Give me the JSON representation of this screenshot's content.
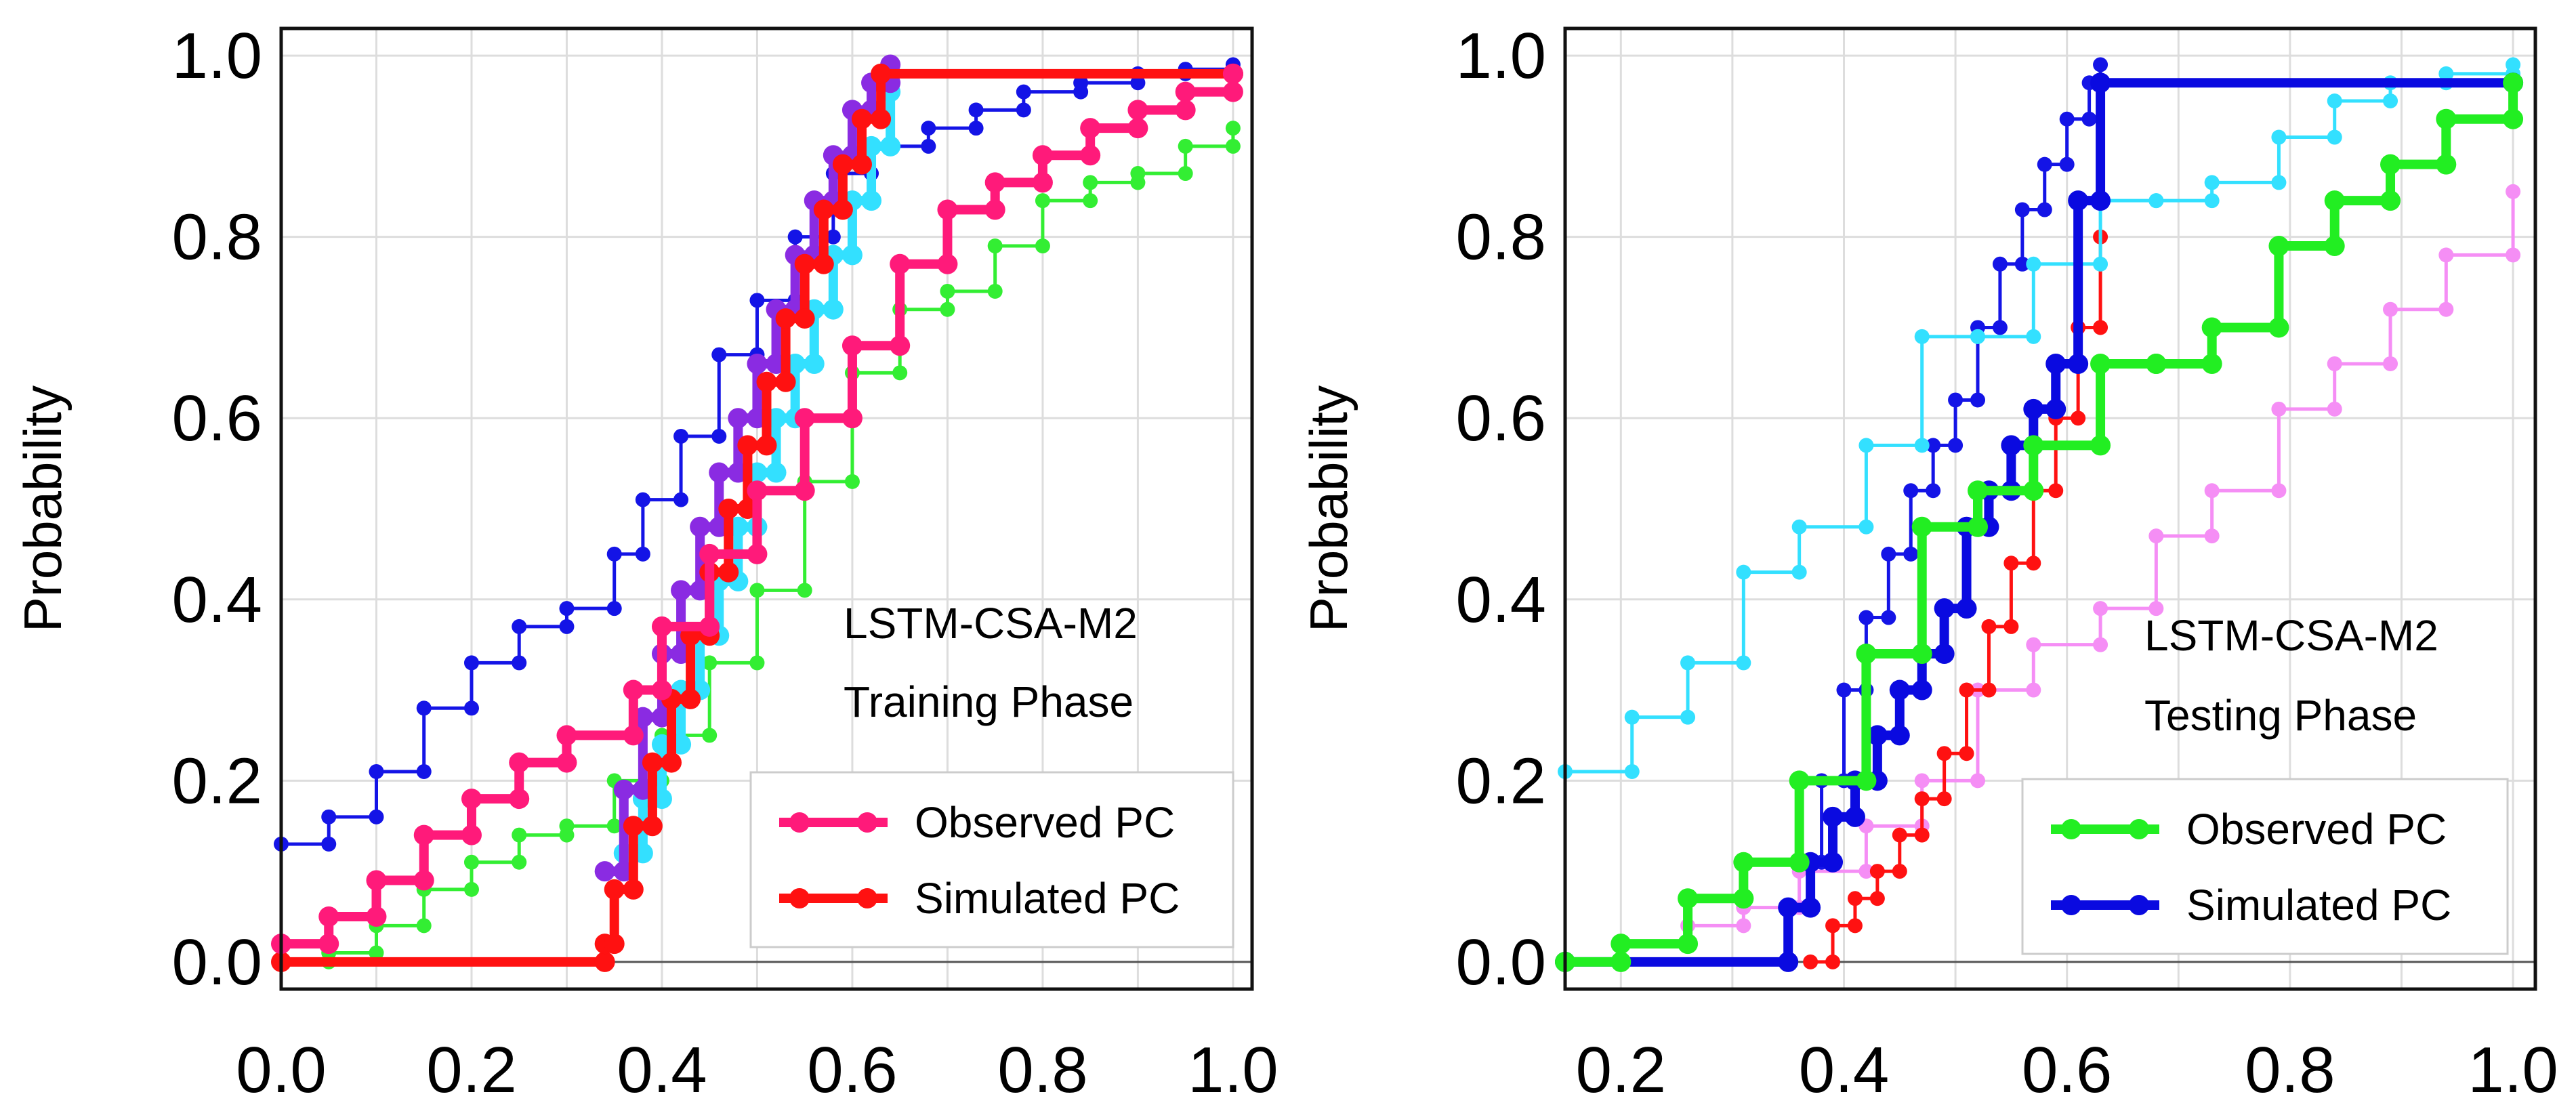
{
  "chart_data": [
    {
      "type": "line",
      "subtype": "step-ecdf",
      "ylabel": "Probability",
      "xlabel": "",
      "xlim": [
        0,
        1.02
      ],
      "ylim": [
        -0.03,
        1.03
      ],
      "xticks": [
        "0.0",
        "0.2",
        "0.4",
        "0.6",
        "0.8",
        "1.0"
      ],
      "yticks": [
        "0.0",
        "0.2",
        "0.4",
        "0.6",
        "0.8",
        "1.0"
      ],
      "grid": true,
      "annotation": [
        "LSTM-CSA-M2",
        "Training Phase"
      ],
      "legend_position": "lower-right",
      "series": [
        {
          "name": "Observed PC",
          "in_legend": true,
          "color": "#ff1a7a",
          "width": "thick",
          "x": [
            0.0,
            0.05,
            0.1,
            0.15,
            0.2,
            0.25,
            0.3,
            0.37,
            0.4,
            0.45,
            0.5,
            0.55,
            0.6,
            0.65,
            0.7,
            0.75,
            0.8,
            0.85,
            0.9,
            0.95,
            1.0
          ],
          "y": [
            0.02,
            0.05,
            0.09,
            0.14,
            0.18,
            0.22,
            0.25,
            0.3,
            0.37,
            0.45,
            0.52,
            0.6,
            0.68,
            0.77,
            0.83,
            0.86,
            0.89,
            0.92,
            0.94,
            0.96,
            0.98
          ]
        },
        {
          "name": "Simulated PC",
          "in_legend": true,
          "color": "#ff1111",
          "width": "thick",
          "x": [
            0.0,
            0.34,
            0.35,
            0.37,
            0.39,
            0.41,
            0.43,
            0.45,
            0.47,
            0.49,
            0.51,
            0.53,
            0.55,
            0.57,
            0.59,
            0.61,
            0.63,
            1.0
          ],
          "y": [
            0.0,
            0.02,
            0.08,
            0.15,
            0.22,
            0.29,
            0.36,
            0.43,
            0.5,
            0.57,
            0.64,
            0.71,
            0.77,
            0.83,
            0.88,
            0.93,
            0.98,
            0.98
          ]
        },
        {
          "name": "Model series (purple)",
          "in_legend": false,
          "color": "#8a2be2",
          "width": "thick",
          "x": [
            0.34,
            0.36,
            0.38,
            0.4,
            0.42,
            0.44,
            0.46,
            0.48,
            0.5,
            0.52,
            0.54,
            0.56,
            0.58,
            0.6,
            0.62,
            0.64
          ],
          "y": [
            0.1,
            0.19,
            0.27,
            0.34,
            0.41,
            0.48,
            0.54,
            0.6,
            0.66,
            0.72,
            0.78,
            0.84,
            0.89,
            0.94,
            0.97,
            0.99
          ]
        },
        {
          "name": "Model series (cyan)",
          "in_legend": false,
          "color": "#33e0ff",
          "width": "thick",
          "x": [
            0.36,
            0.38,
            0.4,
            0.42,
            0.44,
            0.46,
            0.48,
            0.5,
            0.52,
            0.54,
            0.56,
            0.58,
            0.6,
            0.62,
            0.64
          ],
          "y": [
            0.12,
            0.18,
            0.24,
            0.3,
            0.36,
            0.42,
            0.48,
            0.54,
            0.6,
            0.66,
            0.72,
            0.78,
            0.84,
            0.9,
            0.96
          ]
        },
        {
          "name": "Model series (blue)",
          "in_legend": false,
          "color": "#1414e6",
          "width": "thin",
          "x": [
            0.0,
            0.05,
            0.1,
            0.15,
            0.2,
            0.25,
            0.3,
            0.35,
            0.38,
            0.42,
            0.46,
            0.5,
            0.54,
            0.58,
            0.62,
            0.68,
            0.73,
            0.78,
            0.84,
            0.9,
            0.95,
            1.0
          ],
          "y": [
            0.13,
            0.16,
            0.21,
            0.28,
            0.33,
            0.37,
            0.39,
            0.45,
            0.51,
            0.58,
            0.67,
            0.73,
            0.8,
            0.87,
            0.9,
            0.92,
            0.94,
            0.96,
            0.97,
            0.98,
            0.985,
            0.99
          ]
        },
        {
          "name": "Model series (green)",
          "in_legend": false,
          "color": "#33ee33",
          "width": "thin",
          "x": [
            0.0,
            0.05,
            0.1,
            0.15,
            0.2,
            0.25,
            0.3,
            0.35,
            0.4,
            0.45,
            0.5,
            0.55,
            0.6,
            0.65,
            0.7,
            0.75,
            0.8,
            0.85,
            0.9,
            0.95,
            1.0
          ],
          "y": [
            0.0,
            0.01,
            0.04,
            0.08,
            0.11,
            0.14,
            0.15,
            0.2,
            0.25,
            0.33,
            0.41,
            0.53,
            0.65,
            0.72,
            0.74,
            0.79,
            0.84,
            0.86,
            0.87,
            0.9,
            0.92
          ]
        }
      ]
    },
    {
      "type": "line",
      "subtype": "step-ecdf",
      "ylabel": "Probability",
      "xlabel": "",
      "xlim": [
        0.15,
        1.02
      ],
      "ylim": [
        -0.03,
        1.03
      ],
      "xticks": [
        "0.2",
        "0.4",
        "0.6",
        "0.8",
        "1.0"
      ],
      "yticks": [
        "0.0",
        "0.2",
        "0.4",
        "0.6",
        "0.8",
        "1.0"
      ],
      "grid": true,
      "annotation": [
        "LSTM-CSA-M2",
        "Testing Phase"
      ],
      "legend_position": "lower-right",
      "series": [
        {
          "name": "Observed PC",
          "in_legend": true,
          "color": "#22ee22",
          "width": "thick",
          "x": [
            0.15,
            0.2,
            0.26,
            0.31,
            0.36,
            0.42,
            0.47,
            0.52,
            0.57,
            0.63,
            0.68,
            0.73,
            0.79,
            0.84,
            0.89,
            0.94,
            1.0
          ],
          "y": [
            0.0,
            0.02,
            0.07,
            0.11,
            0.2,
            0.34,
            0.48,
            0.52,
            0.57,
            0.66,
            0.66,
            0.7,
            0.79,
            0.84,
            0.88,
            0.93,
            0.97
          ]
        },
        {
          "name": "Simulated PC",
          "in_legend": true,
          "color": "#0a0ae0",
          "width": "thick",
          "x": [
            0.15,
            0.35,
            0.37,
            0.39,
            0.41,
            0.43,
            0.45,
            0.47,
            0.49,
            0.51,
            0.53,
            0.55,
            0.57,
            0.59,
            0.61,
            0.63,
            1.0
          ],
          "y": [
            0.0,
            0.06,
            0.11,
            0.16,
            0.2,
            0.25,
            0.3,
            0.34,
            0.39,
            0.48,
            0.52,
            0.57,
            0.61,
            0.66,
            0.84,
            0.97,
            0.97
          ]
        },
        {
          "name": "Model series (cyan)",
          "in_legend": false,
          "color": "#33e0ff",
          "width": "thin",
          "x": [
            0.15,
            0.21,
            0.26,
            0.31,
            0.36,
            0.42,
            0.47,
            0.52,
            0.57,
            0.63,
            0.68,
            0.73,
            0.79,
            0.84,
            0.89,
            0.94,
            1.0
          ],
          "y": [
            0.21,
            0.27,
            0.33,
            0.43,
            0.48,
            0.57,
            0.69,
            0.69,
            0.77,
            0.84,
            0.84,
            0.86,
            0.91,
            0.95,
            0.97,
            0.98,
            0.99
          ]
        },
        {
          "name": "Model series (blue)",
          "in_legend": false,
          "color": "#1414e6",
          "width": "thin",
          "x": [
            0.36,
            0.38,
            0.4,
            0.42,
            0.44,
            0.46,
            0.48,
            0.5,
            0.52,
            0.54,
            0.56,
            0.58,
            0.6,
            0.62,
            0.63
          ],
          "y": [
            0.11,
            0.2,
            0.3,
            0.38,
            0.45,
            0.52,
            0.57,
            0.62,
            0.7,
            0.77,
            0.83,
            0.88,
            0.93,
            0.97,
            0.99
          ]
        },
        {
          "name": "Model series (red)",
          "in_legend": false,
          "color": "#ff1111",
          "width": "thin",
          "x": [
            0.37,
            0.39,
            0.41,
            0.43,
            0.45,
            0.47,
            0.49,
            0.51,
            0.53,
            0.55,
            0.57,
            0.59,
            0.61,
            0.63
          ],
          "y": [
            0.0,
            0.04,
            0.07,
            0.1,
            0.14,
            0.18,
            0.23,
            0.3,
            0.37,
            0.44,
            0.52,
            0.6,
            0.7,
            0.8
          ]
        },
        {
          "name": "Model series (pink)",
          "in_legend": false,
          "color": "#f58ef5",
          "width": "thin",
          "x": [
            0.26,
            0.31,
            0.36,
            0.42,
            0.47,
            0.52,
            0.57,
            0.63,
            0.68,
            0.73,
            0.79,
            0.84,
            0.89,
            0.94,
            1.0
          ],
          "y": [
            0.04,
            0.06,
            0.1,
            0.15,
            0.2,
            0.3,
            0.35,
            0.39,
            0.47,
            0.52,
            0.61,
            0.66,
            0.72,
            0.78,
            0.85
          ]
        }
      ]
    }
  ]
}
